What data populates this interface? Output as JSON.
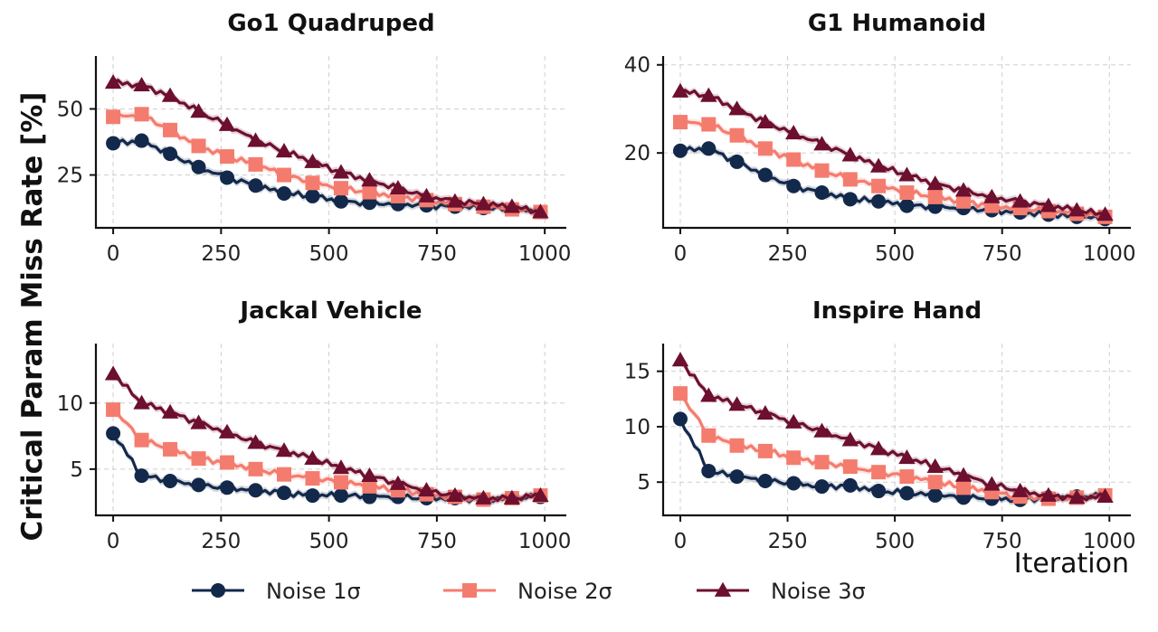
{
  "figure": {
    "ylabel": "Critical Param Miss Rate [%]",
    "xlabel": "Iteration"
  },
  "legend": [
    {
      "label": "Noise 1σ",
      "color": "#13294b",
      "marker": "circle"
    },
    {
      "label": "Noise 2σ",
      "color": "#f47c6e",
      "marker": "square"
    },
    {
      "label": "Noise 3σ",
      "color": "#6d0f2e",
      "marker": "triangle"
    }
  ],
  "chart_data": [
    {
      "type": "line",
      "title": "Go1 Quadruped",
      "x": [
        0,
        66,
        132,
        198,
        264,
        330,
        396,
        462,
        528,
        594,
        660,
        726,
        792,
        858,
        924,
        990
      ],
      "xticks": [
        0,
        250,
        500,
        750,
        1000
      ],
      "yticks": [
        25,
        50
      ],
      "xlim": [
        -40,
        1050
      ],
      "ylim": [
        5,
        70
      ],
      "grid": true,
      "series": [
        {
          "name": "Noise 1σ",
          "values": [
            37,
            38,
            33,
            28,
            24,
            21,
            18,
            17,
            15,
            14.5,
            14,
            13.5,
            13,
            12.5,
            12,
            11
          ]
        },
        {
          "name": "Noise 2σ",
          "values": [
            47,
            48,
            42,
            36,
            32,
            29,
            25,
            22,
            20,
            18.5,
            17,
            15.5,
            14,
            13,
            12,
            11
          ]
        },
        {
          "name": "Noise 3σ",
          "values": [
            60,
            59,
            55,
            49,
            44,
            38,
            34,
            30,
            26,
            23,
            20,
            17,
            15,
            14,
            13,
            11
          ]
        }
      ]
    },
    {
      "type": "line",
      "title": "G1 Humanoid",
      "x": [
        0,
        66,
        132,
        198,
        264,
        330,
        396,
        462,
        528,
        594,
        660,
        726,
        792,
        858,
        924,
        990
      ],
      "xticks": [
        0,
        250,
        500,
        750,
        1000
      ],
      "yticks": [
        20,
        40
      ],
      "xlim": [
        -40,
        1050
      ],
      "ylim": [
        3,
        42
      ],
      "grid": true,
      "series": [
        {
          "name": "Noise 1σ",
          "values": [
            20.5,
            21,
            18,
            15,
            12.5,
            11,
            9.5,
            9,
            8,
            7.8,
            7.5,
            7,
            6.5,
            6,
            5.5,
            5
          ]
        },
        {
          "name": "Noise 2σ",
          "values": [
            27,
            26.5,
            24,
            21,
            18.5,
            16,
            14,
            12.5,
            11,
            10,
            9,
            8,
            7.5,
            6.8,
            6.2,
            5.5
          ]
        },
        {
          "name": "Noise 3σ",
          "values": [
            34,
            33,
            30,
            27,
            24.5,
            22,
            19.5,
            17,
            15,
            13,
            11.5,
            10,
            9,
            8,
            7,
            6
          ]
        }
      ]
    },
    {
      "type": "line",
      "title": "Jackal Vehicle",
      "x": [
        0,
        66,
        132,
        198,
        264,
        330,
        396,
        462,
        528,
        594,
        660,
        726,
        792,
        858,
        924,
        990
      ],
      "xticks": [
        0,
        250,
        500,
        750,
        1000
      ],
      "yticks": [
        5,
        10
      ],
      "xlim": [
        -40,
        1050
      ],
      "ylim": [
        1.5,
        14.5
      ],
      "grid": true,
      "series": [
        {
          "name": "Noise 1σ",
          "values": [
            7.7,
            4.5,
            4.1,
            3.8,
            3.6,
            3.4,
            3.2,
            3.0,
            3.0,
            2.9,
            2.9,
            2.8,
            2.8,
            2.7,
            2.8,
            2.9
          ]
        },
        {
          "name": "Noise 2σ",
          "values": [
            9.5,
            7.2,
            6.5,
            5.8,
            5.5,
            5.0,
            4.6,
            4.3,
            4.0,
            3.7,
            3.4,
            3.1,
            2.9,
            2.7,
            2.8,
            3.0
          ]
        },
        {
          "name": "Noise 3σ",
          "values": [
            12.2,
            10.0,
            9.3,
            8.5,
            7.8,
            7.0,
            6.4,
            5.8,
            5.1,
            4.5,
            3.9,
            3.4,
            3.0,
            2.8,
            2.8,
            3.0
          ]
        }
      ]
    },
    {
      "type": "line",
      "title": "Inspire Hand",
      "x": [
        0,
        66,
        132,
        198,
        264,
        330,
        396,
        462,
        528,
        594,
        660,
        726,
        792,
        858,
        924,
        990
      ],
      "xticks": [
        0,
        250,
        500,
        750,
        1000
      ],
      "yticks": [
        5,
        10,
        15
      ],
      "xlim": [
        -40,
        1050
      ],
      "ylim": [
        2,
        17.5
      ],
      "grid": true,
      "series": [
        {
          "name": "Noise 1σ",
          "values": [
            10.7,
            6.0,
            5.5,
            5.1,
            4.9,
            4.6,
            4.7,
            4.2,
            4.0,
            3.8,
            3.6,
            3.5,
            3.4,
            3.6,
            3.7,
            3.8
          ]
        },
        {
          "name": "Noise 2σ",
          "values": [
            13.0,
            9.2,
            8.3,
            7.8,
            7.2,
            6.8,
            6.4,
            5.9,
            5.5,
            5.0,
            4.5,
            4.1,
            3.7,
            3.5,
            3.6,
            3.8
          ]
        },
        {
          "name": "Noise 3σ",
          "values": [
            16.0,
            12.8,
            12.0,
            11.2,
            10.4,
            9.6,
            8.8,
            8.0,
            7.2,
            6.4,
            5.6,
            4.8,
            4.2,
            3.8,
            3.6,
            3.7
          ]
        }
      ]
    }
  ]
}
